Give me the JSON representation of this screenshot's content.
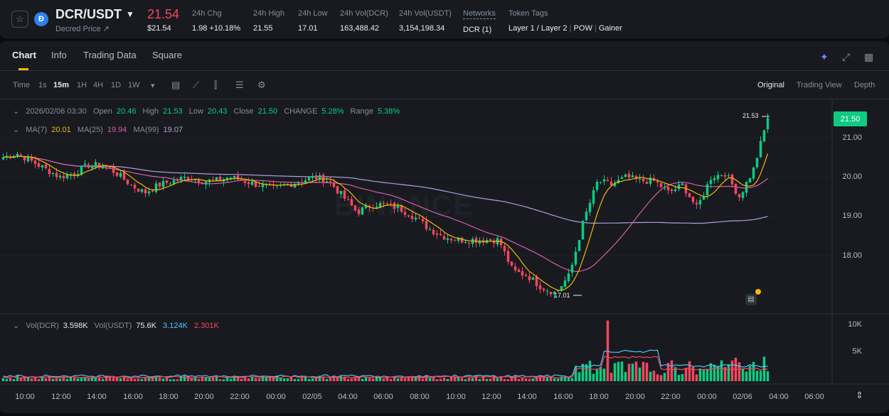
{
  "header": {
    "pair": "DCR/USDT",
    "subname": "Decred Price ↗",
    "price": "21.54",
    "price_usd": "$21.54",
    "stats": [
      {
        "label": "24h Chg",
        "value": "1.98 +10.18%",
        "color": "#0ecb81"
      },
      {
        "label": "24h High",
        "value": "21.55"
      },
      {
        "label": "24h Low",
        "value": "17.01"
      },
      {
        "label": "24h Vol(DCR)",
        "value": "163,488.42"
      },
      {
        "label": "24h Vol(USDT)",
        "value": "3,154,198.34"
      },
      {
        "label": "Networks",
        "value": "DCR (1)"
      }
    ],
    "tags_label": "Token Tags",
    "tags": [
      "Layer 1 / Layer 2",
      "POW",
      "Gainer"
    ]
  },
  "tabs": [
    "Chart",
    "Info",
    "Trading Data",
    "Square"
  ],
  "timeframes": [
    "Time",
    "1s",
    "15m",
    "1H",
    "4H",
    "1D",
    "1W"
  ],
  "active_timeframe": "15m",
  "views": [
    "Original",
    "Trading View",
    "Depth"
  ],
  "ohlc": {
    "date": "2026/02/06 03:30",
    "open_l": "Open",
    "open": "20.46",
    "high_l": "High",
    "high": "21.53",
    "low_l": "Low",
    "low": "20.43",
    "close_l": "Close",
    "close": "21.50",
    "change_l": "CHANGE",
    "change": "5.28%",
    "range_l": "Range",
    "range": "5.38%"
  },
  "ma": {
    "ma7_l": "MA(7)",
    "ma7": "20.01",
    "ma25_l": "MA(25)",
    "ma25": "19.94",
    "ma99_l": "MA(99)",
    "ma99": "19.07"
  },
  "vol": {
    "l1": "Vol(DCR)",
    "v1": "3.598K",
    "l2": "Vol(USDT)",
    "v2": "75.6K",
    "v3": "3.124K",
    "v4": "2.301K"
  },
  "y_labels": [
    "21.00",
    "20.00",
    "19.00",
    "18.00"
  ],
  "vol_labels": [
    "10K",
    "5K"
  ],
  "current_price": "21.50",
  "high_marker": "21.53",
  "low_marker": "17.01",
  "x_labels": [
    "10:00",
    "12:00",
    "14:00",
    "16:00",
    "18:00",
    "20:00",
    "22:00",
    "00:00",
    "02/05",
    "04:00",
    "06:00",
    "08:00",
    "10:00",
    "12:00",
    "14:00",
    "16:00",
    "18:00",
    "20:00",
    "22:00",
    "00:00",
    "02/06",
    "04:00",
    "06:00"
  ],
  "colors": {
    "up": "#0ecb81",
    "down": "#f6465d",
    "ma7": "#f0b90b",
    "ma25": "#d55fa7",
    "ma99": "#b39ddb"
  },
  "chart_data": {
    "type": "candlestick",
    "interval": "15m",
    "anchor_prices": [
      20.5,
      20.6,
      20.4,
      20.2,
      20.0,
      20.1,
      20.3,
      20.3,
      20.1,
      19.8,
      19.6,
      19.8,
      19.9,
      20.0,
      19.9,
      19.9,
      20.0,
      19.9,
      19.8,
      19.7,
      19.8,
      19.9,
      20.0,
      19.9,
      19.5,
      19.1,
      19.3,
      19.3,
      19.2,
      19.0,
      18.7,
      18.5,
      18.4,
      18.4,
      18.4,
      18.4,
      17.6,
      17.5,
      17.2,
      17.05,
      17.5,
      18.9,
      19.9,
      19.8,
      20.0,
      19.9,
      19.9,
      19.6,
      19.8,
      19.2,
      20.0,
      20.1,
      19.5,
      20.2,
      21.5
    ],
    "y_range": [
      17.0,
      21.6
    ],
    "volume_range_k": [
      0,
      10
    ]
  },
  "watermark": "BINANCE"
}
